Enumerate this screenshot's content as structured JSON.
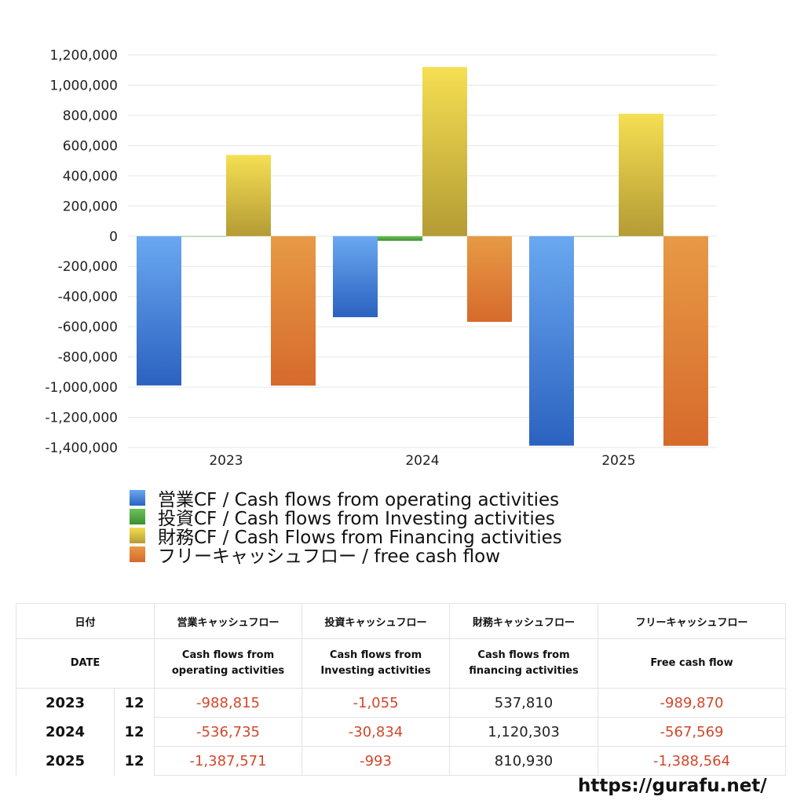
{
  "chart_data": {
    "type": "bar",
    "categories": [
      "2023",
      "2024",
      "2025"
    ],
    "ylim": [
      -1400000,
      1200000
    ],
    "yticks": [
      1200000,
      1000000,
      800000,
      600000,
      400000,
      200000,
      0,
      -200000,
      -400000,
      -600000,
      -800000,
      -1000000,
      -1200000,
      -1400000
    ],
    "grid": true,
    "legend_position": "bottom",
    "series": [
      {
        "name": "営業CF / Cash flows from operating activities",
        "values": [
          -988815,
          -536735,
          -1387571
        ],
        "colors": [
          "#2b62c0",
          "#6aa8f0"
        ]
      },
      {
        "name": "投資CF / Cash flows from Investing activities",
        "values": [
          -1055,
          -30834,
          -993
        ],
        "colors": [
          "#3c8f30",
          "#6cc25a"
        ]
      },
      {
        "name": "財務CF / Cash Flows from Financing activities",
        "values": [
          537810,
          1120303,
          810930
        ],
        "colors": [
          "#b49b35",
          "#f5df52"
        ]
      },
      {
        "name": "フリーキャッシュフロー / free cash flow",
        "values": [
          -989870,
          -567569,
          -1388564
        ],
        "colors": [
          "#d66a2c",
          "#e79a45"
        ]
      }
    ]
  },
  "table": {
    "header_jp": [
      "日付",
      "営業キャッシュフロー",
      "投資キャッシュフロー",
      "財務キャッシュフロー",
      "フリーキャッシュフロー"
    ],
    "header_en": {
      "date": "DATE",
      "operating_1": "Cash flows from",
      "operating_2": "operating activities",
      "investing_1": "Cash flows from",
      "investing_2": "Investing activities",
      "financing_1": "Cash flows from",
      "financing_2": "financing activities",
      "free": "Free cash flow"
    },
    "rows": [
      {
        "year": "2023",
        "month": "12",
        "operating": "-988,815",
        "investing": "-1,055",
        "financing": "537,810",
        "free": "-989,870"
      },
      {
        "year": "2024",
        "month": "12",
        "operating": "-536,735",
        "investing": "-30,834",
        "financing": "1,120,303",
        "free": "-567,569"
      },
      {
        "year": "2025",
        "month": "12",
        "operating": "-1,387,571",
        "investing": "-993",
        "financing": "810,930",
        "free": "-1,388,564"
      }
    ]
  },
  "source_url": "https://gurafu.net/"
}
